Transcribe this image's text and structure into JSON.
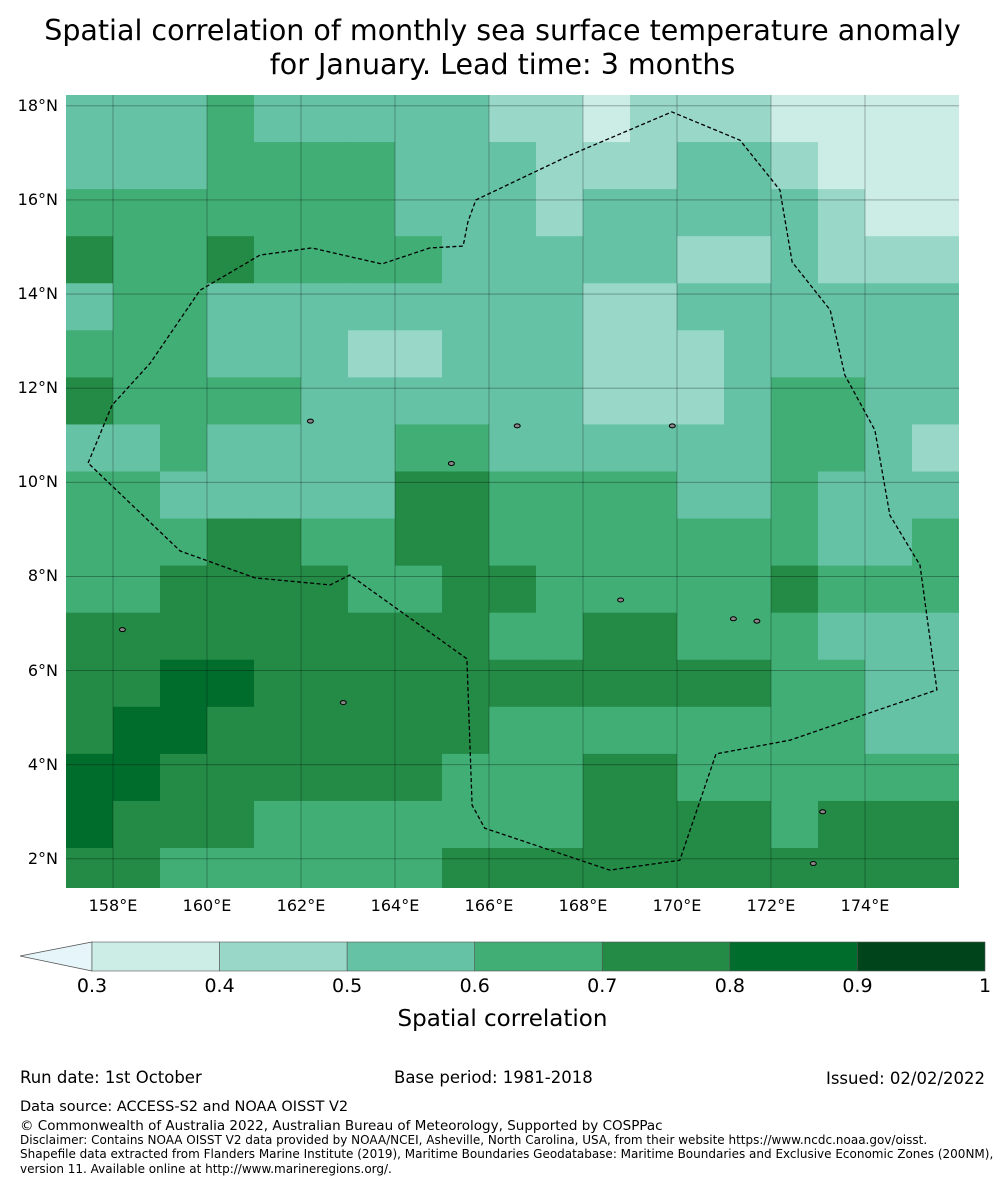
{
  "title_line1": "Spatial correlation of monthly sea surface temperature anomaly",
  "title_line2": "for January. Lead time: 3 months",
  "chart_data": {
    "type": "heatmap",
    "title": "Spatial correlation of monthly sea surface temperature anomaly for January. Lead time: 3 months",
    "lon_range": [
      157,
      176
    ],
    "lat_range": [
      1.38,
      18.23
    ],
    "cell_deg": 1,
    "lon_ticks": [
      "158°E",
      "160°E",
      "162°E",
      "164°E",
      "166°E",
      "168°E",
      "170°E",
      "172°E",
      "174°E"
    ],
    "lat_ticks": [
      "18°N",
      "16°N",
      "14°N",
      "12°N",
      "10°N",
      "8°N",
      "6°N",
      "4°N",
      "2°N"
    ],
    "level_note": "rows north to south, columns west to east; value = colour class index",
    "grid_levels": [
      "3334333332212221111",
      "3334444333222332111",
      "4444444333233333211",
      "5445444433333223222",
      "3443333333322333333",
      "4443332233322233333",
      "5444433333322234433",
      "3343333443333334432",
      "4433333554444334333",
      "4445544554444444334",
      "4455554455444445444",
      "5555555554455444333",
      "5566555555555554433",
      "5665555554444444433",
      "6655555544455444444",
      "6555444444455554555",
      "5544444455555555555"
    ],
    "colorbar": {
      "label": "Spatial correlation",
      "ticks": [
        "0.3",
        "0.4",
        "0.5",
        "0.6",
        "0.7",
        "0.8",
        "0.9",
        "1"
      ],
      "bins": [
        [
          0,
          0.3
        ],
        [
          0.3,
          0.4
        ],
        [
          0.4,
          0.5
        ],
        [
          0.5,
          0.6
        ],
        [
          0.6,
          0.7
        ],
        [
          0.7,
          0.8
        ],
        [
          0.8,
          0.9
        ],
        [
          0.9,
          1
        ]
      ],
      "colors": [
        "#e5f5f9",
        "#ccece6",
        "#99d8c9",
        "#66c2a4",
        "#41ae76",
        "#238b45",
        "#006d2c",
        "#00441b"
      ],
      "extend": "min"
    },
    "eez_boundary": [
      [
        157.47,
        10.41
      ],
      [
        157.98,
        11.64
      ],
      [
        158.79,
        12.53
      ],
      [
        159.85,
        14.08
      ],
      [
        161.13,
        14.83
      ],
      [
        162.23,
        14.98
      ],
      [
        163.72,
        14.64
      ],
      [
        164.74,
        14.98
      ],
      [
        165.45,
        15.02
      ],
      [
        165.55,
        15.53
      ],
      [
        165.72,
        16.0
      ],
      [
        167.72,
        16.95
      ],
      [
        169.89,
        17.87
      ],
      [
        171.34,
        17.27
      ],
      [
        172.19,
        16.21
      ],
      [
        172.45,
        14.68
      ],
      [
        173.26,
        13.66
      ],
      [
        173.57,
        12.28
      ],
      [
        174.21,
        11.11
      ],
      [
        174.53,
        9.3
      ],
      [
        175.17,
        8.24
      ],
      [
        175.53,
        5.59
      ],
      [
        172.4,
        4.52
      ],
      [
        170.83,
        4.23
      ],
      [
        170.06,
        1.97
      ],
      [
        168.57,
        1.76
      ],
      [
        165.91,
        2.65
      ],
      [
        165.64,
        3.14
      ],
      [
        165.53,
        6.25
      ],
      [
        163.04,
        8.03
      ],
      [
        162.62,
        7.82
      ],
      [
        161.02,
        7.97
      ],
      [
        159.43,
        8.54
      ],
      [
        157.47,
        10.41
      ]
    ],
    "islands": [
      [
        158.2,
        6.87
      ],
      [
        162.9,
        5.32
      ],
      [
        171.2,
        7.1
      ],
      [
        171.7,
        7.05
      ],
      [
        172.9,
        1.9
      ],
      [
        173.1,
        3.0
      ],
      [
        168.8,
        7.5
      ],
      [
        166.6,
        11.2
      ],
      [
        162.2,
        11.3
      ],
      [
        169.9,
        11.2
      ],
      [
        165.2,
        10.4
      ]
    ]
  },
  "footer": {
    "run_date": "Run date: 1st October",
    "base_period": "Base period: 1981-2018",
    "issued": "Issued: 02/02/2022",
    "data_source": "Data source: ACCESS-S2 and NOAA OISST V2",
    "copyright": "© Commonwealth of Australia 2022, Australian Bureau of Meteorology, Supported by COSPPac",
    "disclaimer1": "Disclaimer: Contains NOAA OISST V2 data provided by NOAA/NCEI, Asheville, North Carolina, USA, from their website https://www.ncdc.noaa.gov/oisst.",
    "disclaimer2": "Shapefile data extracted from Flanders Marine Institute (2019), Maritime Boundaries Geodatabase: Maritime Boundaries and Exclusive Economic Zones (200NM),",
    "disclaimer3": "version 11. Available online at http://www.marineregions.org/."
  }
}
